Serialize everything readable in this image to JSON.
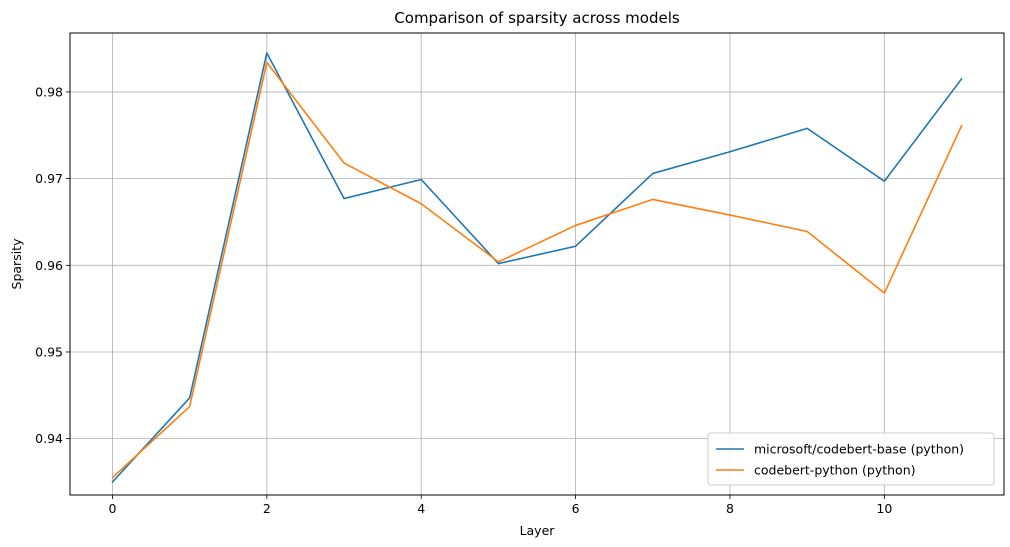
{
  "chart_data": {
    "type": "line",
    "title": "Comparison of sparsity across models",
    "xlabel": "Layer",
    "ylabel": "Sparsity",
    "x": [
      0,
      1,
      2,
      3,
      4,
      5,
      6,
      7,
      8,
      9,
      10,
      11
    ],
    "xlim": [
      -0.55,
      11.55
    ],
    "ylim": [
      0.9335,
      0.9868
    ],
    "xticks": [
      0,
      2,
      4,
      6,
      8,
      10
    ],
    "yticks": [
      0.94,
      0.95,
      0.96,
      0.97,
      0.98
    ],
    "xtick_labels": [
      "0",
      "2",
      "4",
      "6",
      "8",
      "10"
    ],
    "ytick_labels": [
      "0.94",
      "0.95",
      "0.96",
      "0.97",
      "0.98"
    ],
    "grid": true,
    "legend_position": "bottom-right",
    "series": [
      {
        "name": "microsoft/codebert-base (python)",
        "color": "#1f77b4",
        "values": [
          0.935,
          0.9447,
          0.9845,
          0.9677,
          0.9699,
          0.9602,
          0.9622,
          0.9706,
          0.9731,
          0.9758,
          0.9697,
          0.9815
        ]
      },
      {
        "name": "codebert-python (python)",
        "color": "#ff7f0e",
        "values": [
          0.9355,
          0.9437,
          0.9834,
          0.9718,
          0.9671,
          0.9604,
          0.9646,
          0.9676,
          0.9658,
          0.9639,
          0.9568,
          0.9761
        ]
      }
    ]
  }
}
